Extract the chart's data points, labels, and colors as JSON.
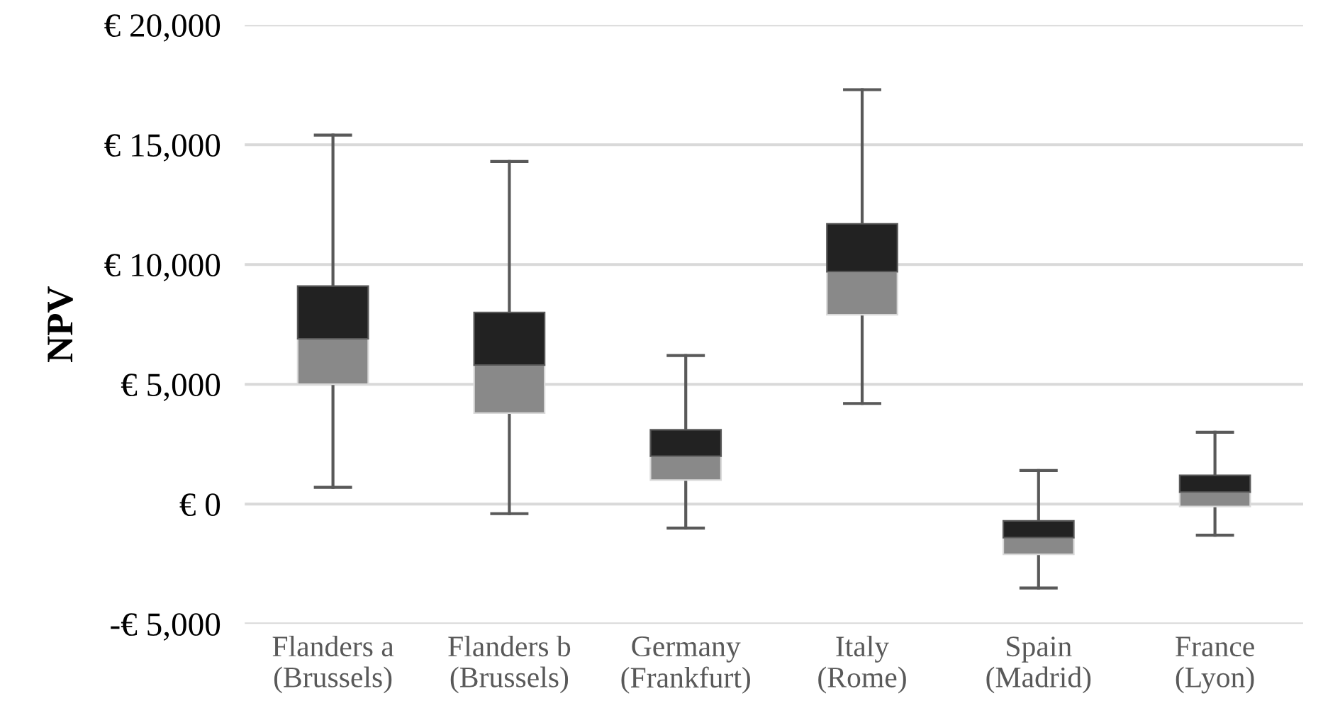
{
  "chart_data": {
    "type": "box",
    "ylabel": "NPV",
    "categories": [
      "Flanders a\n(Brussels)",
      "Flanders b\n(Brussels)",
      "Germany\n(Frankfurt)",
      "Italy\n(Rome)",
      "Spain\n(Madrid)",
      "France\n(Lyon)"
    ],
    "boxes": [
      {
        "low": 700,
        "q1": 5000,
        "median": 6900,
        "q3": 9100,
        "high": 15400
      },
      {
        "low": -400,
        "q1": 3800,
        "median": 5800,
        "q3": 8000,
        "high": 14300
      },
      {
        "low": -1000,
        "q1": 1000,
        "median": 2000,
        "q3": 3100,
        "high": 6200
      },
      {
        "low": 4200,
        "q1": 7900,
        "median": 9700,
        "q3": 11700,
        "high": 17300
      },
      {
        "low": -3500,
        "q1": -2100,
        "median": -1400,
        "q3": -700,
        "high": 1400
      },
      {
        "low": -1300,
        "q1": -100,
        "median": 500,
        "q3": 1200,
        "high": 3000
      }
    ],
    "colors": [
      "#898989",
      "#898989",
      "#898989",
      "#898989",
      "#898989",
      "#898989"
    ],
    "ylim": [
      -5000,
      20000
    ],
    "yticks": [
      {
        "value": -5000,
        "label": "-€ 5,000"
      },
      {
        "value": 0,
        "label": "€ 0"
      },
      {
        "value": 5000,
        "label": "€ 5,000"
      },
      {
        "value": 10000,
        "label": "€ 10,000"
      },
      {
        "value": 15000,
        "label": "€ 15,000"
      },
      {
        "value": 20000,
        "label": "€ 20,000"
      }
    ],
    "grid": "y",
    "legend": false
  }
}
